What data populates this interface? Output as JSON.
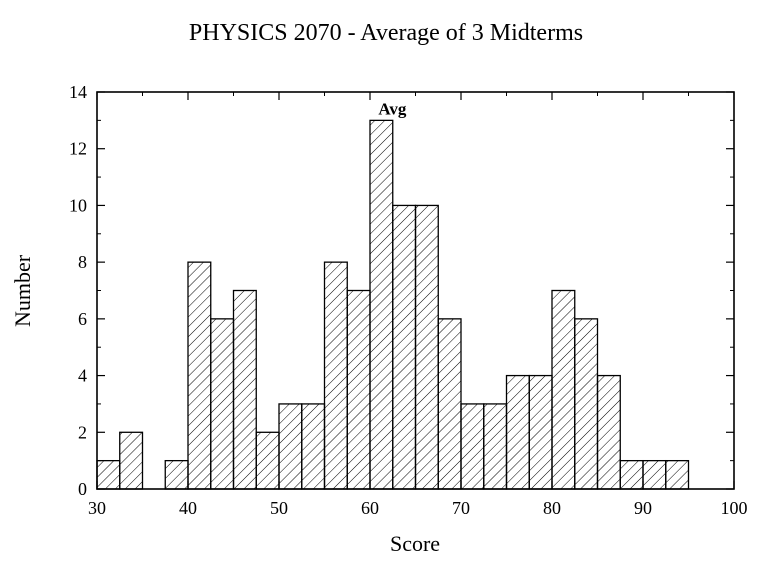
{
  "chart_data": {
    "type": "bar",
    "title": "PHYSICS 2070 - Average of 3 Midterms",
    "xlabel": "Score",
    "ylabel": "Number",
    "xlim": [
      30,
      100
    ],
    "ylim": [
      0,
      14
    ],
    "bin_width": 2.5,
    "x_ticks": [
      30,
      40,
      50,
      60,
      70,
      80,
      90,
      100
    ],
    "y_ticks": [
      0,
      2,
      4,
      6,
      8,
      10,
      12,
      14
    ],
    "bin_starts": [
      30,
      32.5,
      35,
      37.5,
      40,
      42.5,
      45,
      47.5,
      50,
      52.5,
      55,
      57.5,
      60,
      62.5,
      65,
      67.5,
      70,
      72.5,
      75,
      77.5,
      80,
      82.5,
      85,
      87.5,
      90,
      92.5
    ],
    "values": [
      1,
      2,
      0,
      1,
      8,
      6,
      7,
      2,
      3,
      3,
      8,
      7,
      13,
      10,
      10,
      6,
      3,
      3,
      4,
      4,
      7,
      6,
      4,
      1,
      1,
      1
    ],
    "annotation": {
      "text": "Avg",
      "x": 61.25,
      "y": 13
    },
    "grid": false,
    "pattern": "diagonal-hatch"
  }
}
